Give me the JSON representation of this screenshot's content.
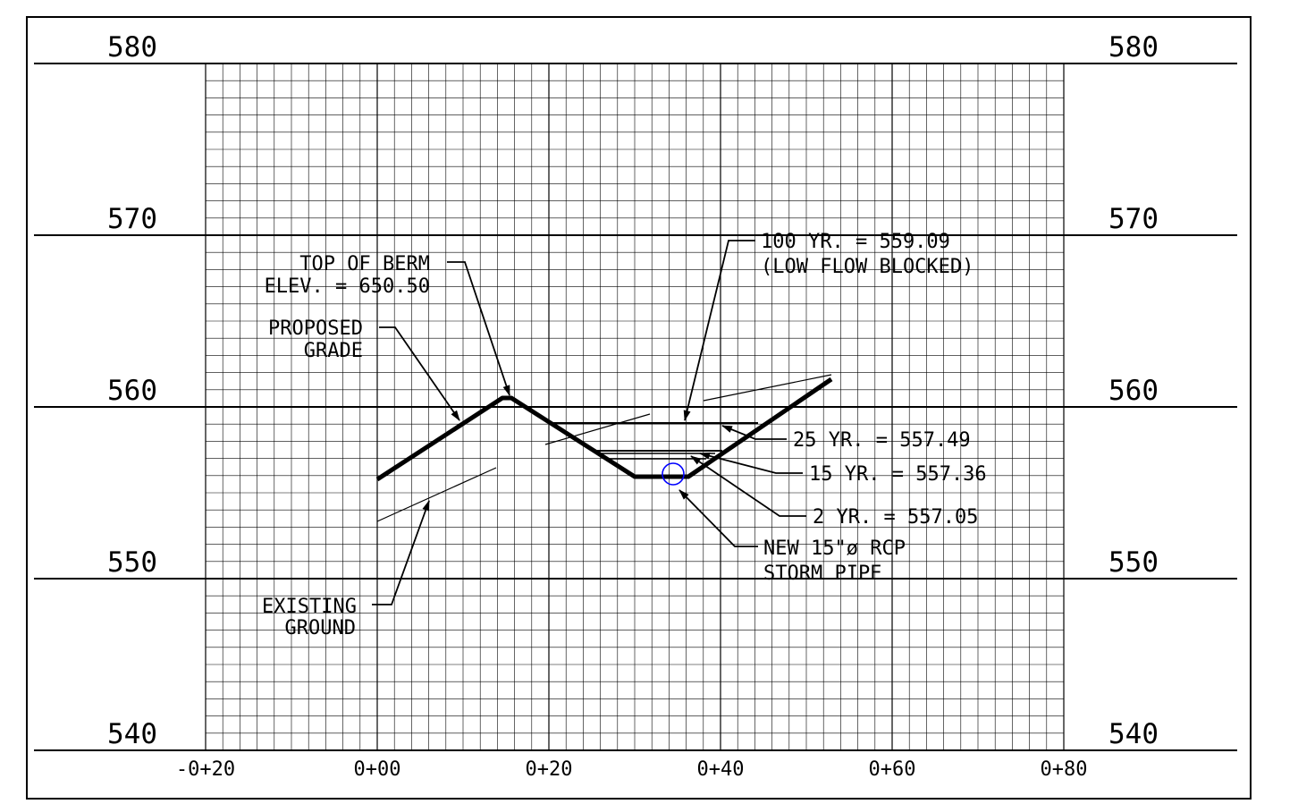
{
  "section": {
    "elevations": [
      "580",
      "570",
      "560",
      "550",
      "540"
    ],
    "stations": [
      "-0+20",
      "0+00",
      "0+20",
      "0+40",
      "0+60",
      "0+80"
    ],
    "elev_range": [
      540,
      580
    ],
    "station_range": [
      -20,
      80
    ]
  },
  "annotations": {
    "top_of_berm": {
      "line1": "TOP OF BERM",
      "line2": "ELEV. = 650.50"
    },
    "proposed_grade": {
      "line1": "PROPOSED",
      "line2": "GRADE"
    },
    "existing_ground": {
      "line1": "EXISTING",
      "line2": "GROUND"
    },
    "yr100": {
      "line1": "100 YR. = 559.09",
      "line2": "(LOW FLOW BLOCKED)"
    },
    "yr25": "25 YR. = 557.49",
    "yr15": "15 YR. = 557.36",
    "yr2": "2 YR. = 557.05",
    "pipe": {
      "line1": "NEW 15\"ø RCP",
      "line2": "STORM PIPE"
    }
  },
  "colors": {
    "pipe": "#0000ff",
    "lines": "#000000"
  }
}
